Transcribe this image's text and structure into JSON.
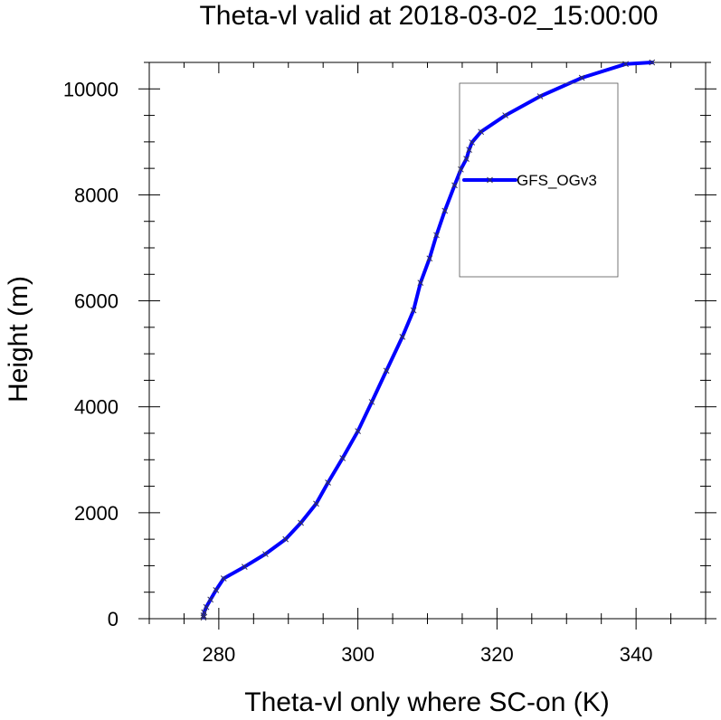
{
  "chart_data": {
    "type": "line",
    "title": "Theta-vl valid at 2018-03-02_15:00:00",
    "xlabel": "Theta-vl only where SC-on (K)",
    "ylabel": "Height (m)",
    "xlim": [
      270,
      350
    ],
    "ylim": [
      0,
      10500
    ],
    "xticks": [
      280,
      300,
      320,
      340
    ],
    "xtick_labels": [
      "280",
      "300",
      "320",
      "340"
    ],
    "yticks": [
      0,
      2000,
      4000,
      6000,
      8000,
      10000
    ],
    "ytick_labels": [
      "0",
      "2000",
      "4000",
      "6000",
      "8000",
      "10000"
    ],
    "grid": false,
    "legend_position": "top-right",
    "series": [
      {
        "name": "GFS_OGv3",
        "color": "#0000ff",
        "marker_color": "#333355",
        "marker": "x",
        "x": [
          277.8,
          277.8,
          277.9,
          278.2,
          278.8,
          279.6,
          280.7,
          283.7,
          286.7,
          289.6,
          291.8,
          294.0,
          295.7,
          297.8,
          300.0,
          302.0,
          304.1,
          306.4,
          308.0,
          309.0,
          310.3,
          311.3,
          312.5,
          313.9,
          314.8,
          315.6,
          316.0,
          316.4,
          317.7,
          321.2,
          326.2,
          332.2,
          338.5,
          342.3
        ],
        "y": [
          20,
          60,
          120,
          220,
          360,
          540,
          760,
          980,
          1220,
          1500,
          1810,
          2170,
          2570,
          3030,
          3540,
          4090,
          4680,
          5320,
          5820,
          6340,
          6800,
          7240,
          7700,
          8180,
          8480,
          8680,
          8850,
          8990,
          9190,
          9500,
          9860,
          10210,
          10470,
          10500
        ]
      }
    ]
  }
}
